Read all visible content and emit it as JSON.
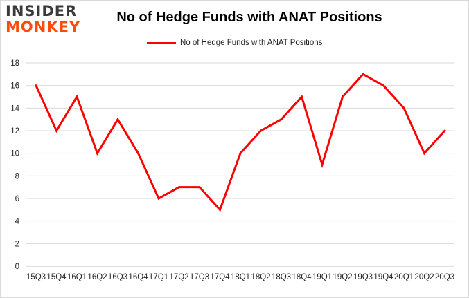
{
  "header": {
    "logo_top": "INSIDER",
    "logo_bottom": "MONKEY",
    "logo_top_color": "#3a3a3a",
    "logo_bottom_color": "#ff4b0a"
  },
  "chart_data": {
    "type": "line",
    "title": "No of Hedge Funds with ANAT Positions",
    "xlabel": "",
    "ylabel": "",
    "legend_position": "top-center",
    "grid": true,
    "ylim": [
      0,
      18
    ],
    "yticks": [
      0,
      2,
      4,
      6,
      8,
      10,
      12,
      14,
      16,
      18
    ],
    "categories": [
      "15Q3",
      "15Q4",
      "16Q1",
      "16Q2",
      "16Q3",
      "16Q4",
      "17Q1",
      "17Q2",
      "17Q3",
      "17Q4",
      "18Q1",
      "18Q2",
      "18Q3",
      "18Q4",
      "19Q1",
      "19Q2",
      "19Q3",
      "19Q4",
      "20Q1",
      "20Q2",
      "20Q3"
    ],
    "series": [
      {
        "name": "No of Hedge Funds with ANAT Positions",
        "color": "#ff0000",
        "values": [
          16,
          12,
          15,
          10,
          13,
          10,
          6,
          7,
          7,
          5,
          10,
          12,
          13,
          15,
          9,
          15,
          17,
          16,
          14,
          10,
          12
        ]
      }
    ]
  }
}
